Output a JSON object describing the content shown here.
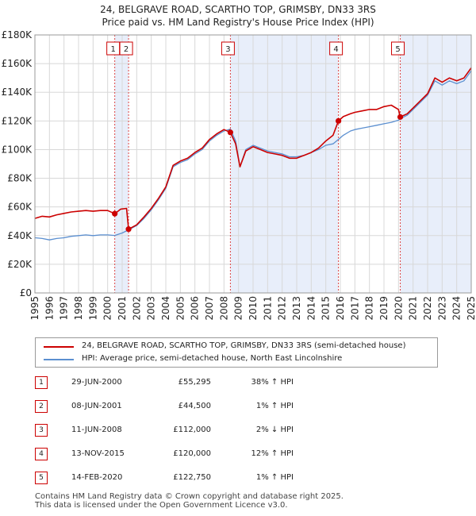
{
  "title_line1": "24, BELGRAVE ROAD, SCARTHO TOP, GRIMSBY, DN33 3RS",
  "title_line2": "Price paid vs. HM Land Registry's House Price Index (HPI)",
  "legend": {
    "property": "24, BELGRAVE ROAD, SCARTHO TOP, GRIMSBY, DN33 3RS (semi-detached house)",
    "hpi": "HPI: Average price, semi-detached house, North East Lincolnshire"
  },
  "transactions": [
    {
      "num": "1",
      "date": "29-JUN-2000",
      "price": "£55,295",
      "hpi": "38% ↑ HPI"
    },
    {
      "num": "2",
      "date": "08-JUN-2001",
      "price": "£44,500",
      "hpi": "1% ↑ HPI"
    },
    {
      "num": "3",
      "date": "11-JUN-2008",
      "price": "£112,000",
      "hpi": "2% ↓ HPI"
    },
    {
      "num": "4",
      "date": "13-NOV-2015",
      "price": "£120,000",
      "hpi": "12% ↑ HPI"
    },
    {
      "num": "5",
      "date": "14-FEB-2020",
      "price": "£122,750",
      "hpi": "1% ↑ HPI"
    }
  ],
  "footer": {
    "line1": "Contains HM Land Registry data © Crown copyright and database right 2025.",
    "line2": "This data is licensed under the Open Government Licence v3.0."
  },
  "chart_data": {
    "type": "line",
    "x_axis": {
      "min": 1995,
      "max": 2025,
      "tick_labels": [
        "1995",
        "1996",
        "1997",
        "1998",
        "1999",
        "2000",
        "2001",
        "2002",
        "2003",
        "2004",
        "2005",
        "2006",
        "2007",
        "2008",
        "2009",
        "2010",
        "2011",
        "2012",
        "2013",
        "2014",
        "2015",
        "2016",
        "2017",
        "2018",
        "2019",
        "2020",
        "2021",
        "2022",
        "2023",
        "2024",
        "2025"
      ]
    },
    "y_axis": {
      "min": 0,
      "max": 180000,
      "tick_values": [
        0,
        20000,
        40000,
        60000,
        80000,
        100000,
        120000,
        140000,
        160000,
        180000
      ],
      "tick_labels": [
        "£0",
        "£20K",
        "£40K",
        "£60K",
        "£80K",
        "£100K",
        "£120K",
        "£140K",
        "£160K",
        "£180K"
      ]
    },
    "grid": true,
    "colors": {
      "property": "#cc0000",
      "hpi": "#5b8fd0",
      "shade": "#e8eefa",
      "vline": "#dd4444"
    },
    "shaded_ranges": [
      [
        2000.49,
        2001.44
      ],
      [
        2008.44,
        2015.87
      ],
      [
        2020.12,
        2025.0
      ]
    ],
    "sales": [
      {
        "label": "1",
        "x": 2000.49,
        "y": 55295
      },
      {
        "label": "2",
        "x": 2001.44,
        "y": 44500
      },
      {
        "label": "3",
        "x": 2008.44,
        "y": 112000
      },
      {
        "label": "4",
        "x": 2015.87,
        "y": 120000
      },
      {
        "label": "5",
        "x": 2020.12,
        "y": 122750
      }
    ],
    "series": [
      {
        "key": "hpi",
        "points": [
          [
            1995.0,
            38500
          ],
          [
            1995.5,
            38000
          ],
          [
            1996.0,
            37000
          ],
          [
            1996.5,
            38000
          ],
          [
            1997.0,
            38500
          ],
          [
            1997.5,
            39500
          ],
          [
            1998.0,
            40000
          ],
          [
            1998.5,
            40500
          ],
          [
            1999.0,
            40000
          ],
          [
            1999.5,
            40500
          ],
          [
            2000.0,
            40500
          ],
          [
            2000.49,
            40100
          ],
          [
            2001.0,
            41800
          ],
          [
            2001.44,
            44000
          ],
          [
            2002.0,
            47000
          ],
          [
            2002.5,
            52000
          ],
          [
            2003.0,
            58000
          ],
          [
            2003.5,
            65000
          ],
          [
            2004.0,
            73000
          ],
          [
            2004.5,
            88000
          ],
          [
            2005.0,
            91000
          ],
          [
            2005.5,
            93000
          ],
          [
            2006.0,
            97000
          ],
          [
            2006.5,
            100000
          ],
          [
            2007.0,
            106000
          ],
          [
            2007.5,
            110000
          ],
          [
            2008.0,
            113000
          ],
          [
            2008.44,
            114300
          ],
          [
            2008.8,
            106000
          ],
          [
            2009.1,
            88000
          ],
          [
            2009.5,
            100000
          ],
          [
            2010.0,
            103000
          ],
          [
            2010.5,
            101000
          ],
          [
            2011.0,
            99000
          ],
          [
            2011.5,
            98000
          ],
          [
            2012.0,
            97000
          ],
          [
            2012.5,
            95000
          ],
          [
            2013.0,
            95000
          ],
          [
            2013.5,
            96000
          ],
          [
            2014.0,
            98000
          ],
          [
            2014.5,
            100000
          ],
          [
            2015.0,
            103000
          ],
          [
            2015.5,
            104000
          ],
          [
            2015.87,
            107100
          ],
          [
            2016.2,
            110000
          ],
          [
            2016.7,
            113000
          ],
          [
            2017.0,
            114000
          ],
          [
            2017.5,
            115000
          ],
          [
            2018.0,
            116000
          ],
          [
            2018.5,
            117000
          ],
          [
            2019.0,
            118000
          ],
          [
            2019.5,
            119000
          ],
          [
            2020.0,
            120500
          ],
          [
            2020.12,
            121500
          ],
          [
            2020.6,
            124000
          ],
          [
            2021.0,
            128000
          ],
          [
            2021.5,
            133000
          ],
          [
            2022.0,
            138000
          ],
          [
            2022.5,
            148000
          ],
          [
            2023.0,
            145000
          ],
          [
            2023.5,
            148000
          ],
          [
            2024.0,
            146000
          ],
          [
            2024.5,
            148000
          ],
          [
            2025.0,
            155000
          ]
        ]
      },
      {
        "key": "property",
        "points": [
          [
            1995.0,
            52000
          ],
          [
            1995.5,
            53500
          ],
          [
            1996.0,
            53000
          ],
          [
            1996.5,
            54500
          ],
          [
            1997.0,
            55500
          ],
          [
            1997.5,
            56500
          ],
          [
            1998.0,
            57000
          ],
          [
            1998.5,
            57500
          ],
          [
            1999.0,
            57000
          ],
          [
            1999.5,
            57500
          ],
          [
            2000.0,
            57500
          ],
          [
            2000.49,
            55295
          ],
          [
            2000.9,
            58500
          ],
          [
            2001.3,
            59000
          ],
          [
            2001.44,
            44500
          ],
          [
            2002.0,
            47500
          ],
          [
            2002.5,
            53000
          ],
          [
            2003.0,
            59000
          ],
          [
            2003.5,
            66000
          ],
          [
            2004.0,
            74000
          ],
          [
            2004.5,
            89000
          ],
          [
            2005.0,
            92000
          ],
          [
            2005.5,
            94000
          ],
          [
            2006.0,
            98000
          ],
          [
            2006.5,
            101000
          ],
          [
            2007.0,
            107000
          ],
          [
            2007.5,
            111000
          ],
          [
            2008.0,
            114000
          ],
          [
            2008.44,
            112000
          ],
          [
            2008.8,
            104000
          ],
          [
            2009.1,
            88000
          ],
          [
            2009.5,
            99000
          ],
          [
            2010.0,
            102000
          ],
          [
            2010.5,
            100000
          ],
          [
            2011.0,
            98000
          ],
          [
            2011.5,
            97000
          ],
          [
            2012.0,
            96000
          ],
          [
            2012.5,
            94000
          ],
          [
            2013.0,
            94000
          ],
          [
            2013.5,
            96000
          ],
          [
            2014.0,
            98000
          ],
          [
            2014.5,
            101000
          ],
          [
            2015.0,
            106000
          ],
          [
            2015.5,
            110000
          ],
          [
            2015.87,
            120000
          ],
          [
            2016.2,
            123000
          ],
          [
            2016.7,
            125000
          ],
          [
            2017.0,
            126000
          ],
          [
            2017.5,
            127000
          ],
          [
            2018.0,
            128000
          ],
          [
            2018.5,
            128000
          ],
          [
            2019.0,
            130000
          ],
          [
            2019.5,
            131000
          ],
          [
            2020.0,
            128000
          ],
          [
            2020.12,
            122750
          ],
          [
            2020.6,
            125000
          ],
          [
            2021.0,
            129000
          ],
          [
            2021.5,
            134000
          ],
          [
            2022.0,
            139000
          ],
          [
            2022.5,
            150000
          ],
          [
            2023.0,
            147000
          ],
          [
            2023.5,
            150000
          ],
          [
            2024.0,
            148000
          ],
          [
            2024.5,
            150000
          ],
          [
            2025.0,
            157000
          ]
        ]
      }
    ]
  }
}
